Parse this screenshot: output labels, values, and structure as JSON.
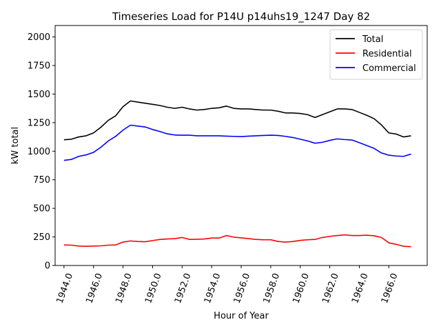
{
  "chart_data": {
    "type": "line",
    "title": "Timeseries Load for P14U p14uhs19_1247  Day 82",
    "xlabel": "Hour of Year",
    "ylabel": "kW total",
    "xlim": [
      1943.4,
      1968.6
    ],
    "ylim": [
      0,
      2100
    ],
    "xticks": [
      1944,
      1946,
      1948,
      1950,
      1952,
      1954,
      1956,
      1958,
      1960,
      1962,
      1964,
      1966
    ],
    "xtick_labels": [
      "1944.0",
      "1946.0",
      "1948.0",
      "1950.0",
      "1952.0",
      "1954.0",
      "1956.0",
      "1958.0",
      "1960.0",
      "1962.0",
      "1964.0",
      "1966.0"
    ],
    "yticks": [
      0,
      250,
      500,
      750,
      1000,
      1250,
      1500,
      1750,
      2000
    ],
    "ytick_labels": [
      "0",
      "250",
      "500",
      "750",
      "1000",
      "1250",
      "1500",
      "1750",
      "2000"
    ],
    "legend_position": "top-right",
    "x": [
      1944.0,
      1944.5,
      1945.0,
      1945.5,
      1946.0,
      1946.5,
      1947.0,
      1947.5,
      1948.0,
      1948.5,
      1949.0,
      1949.5,
      1950.0,
      1950.5,
      1951.0,
      1951.5,
      1952.0,
      1952.5,
      1953.0,
      1953.5,
      1954.0,
      1954.5,
      1955.0,
      1955.5,
      1956.0,
      1956.5,
      1957.0,
      1957.5,
      1958.0,
      1958.5,
      1959.0,
      1959.5,
      1960.0,
      1960.5,
      1961.0,
      1961.5,
      1962.0,
      1962.5,
      1963.0,
      1963.5,
      1964.0,
      1964.5,
      1965.0,
      1965.5,
      1966.0,
      1966.5,
      1967.0,
      1967.5
    ],
    "series": [
      {
        "name": "Total",
        "color": "#000000",
        "values": [
          1100,
          1105,
          1125,
          1135,
          1160,
          1210,
          1270,
          1310,
          1390,
          1440,
          1430,
          1420,
          1410,
          1400,
          1385,
          1375,
          1385,
          1370,
          1360,
          1365,
          1375,
          1380,
          1395,
          1375,
          1370,
          1370,
          1365,
          1360,
          1360,
          1350,
          1335,
          1335,
          1330,
          1320,
          1295,
          1320,
          1345,
          1370,
          1370,
          1365,
          1340,
          1315,
          1285,
          1230,
          1160,
          1150,
          1125,
          1135
        ]
      },
      {
        "name": "Residential",
        "color": "#ff0000",
        "values": [
          180,
          178,
          170,
          168,
          170,
          172,
          178,
          180,
          205,
          215,
          210,
          208,
          218,
          228,
          232,
          235,
          245,
          228,
          230,
          232,
          240,
          240,
          262,
          248,
          242,
          235,
          228,
          225,
          225,
          210,
          205,
          210,
          220,
          225,
          228,
          245,
          255,
          262,
          268,
          262,
          262,
          265,
          260,
          245,
          198,
          185,
          168,
          165
        ]
      },
      {
        "name": "Commercial",
        "color": "#0000ff",
        "values": [
          920,
          928,
          955,
          968,
          990,
          1035,
          1090,
          1130,
          1185,
          1228,
          1220,
          1212,
          1190,
          1172,
          1152,
          1142,
          1140,
          1140,
          1135,
          1135,
          1135,
          1135,
          1132,
          1130,
          1128,
          1132,
          1135,
          1138,
          1140,
          1138,
          1130,
          1120,
          1105,
          1090,
          1070,
          1078,
          1095,
          1108,
          1102,
          1098,
          1075,
          1050,
          1025,
          985,
          965,
          958,
          955,
          975
        ]
      }
    ]
  }
}
